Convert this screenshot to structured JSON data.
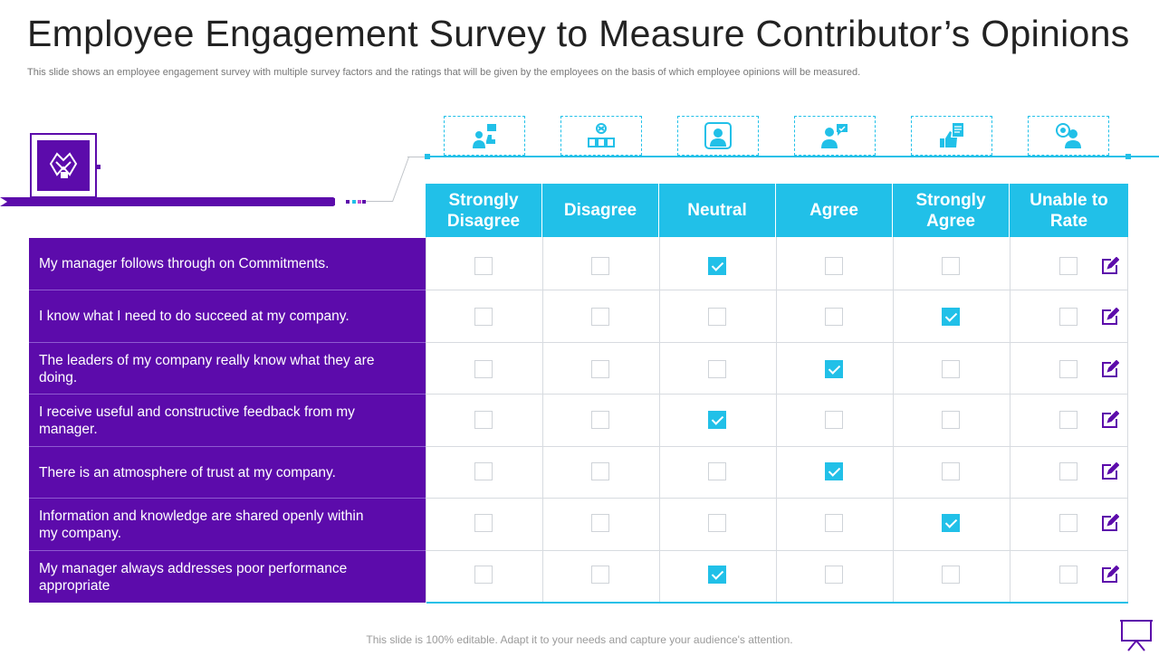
{
  "title": "Employee Engagement Survey to Measure Contributor’s Opinions",
  "subtitle": "This slide shows an employee engagement survey with multiple survey factors and the ratings that will be given by the employees on the basis of which employee opinions will be measured.",
  "header_icons": [
    "person-feedback-icon",
    "voting-icon",
    "person-portrait-icon",
    "person-chat-icon",
    "thumbs-up-document-icon",
    "person-rating-icon"
  ],
  "columns": [
    "Strongly Disagree",
    "Disagree",
    "Neutral",
    "Agree",
    "Strongly Agree",
    "Unable to Rate"
  ],
  "rows": [
    {
      "label": "My manager follows through  on Commitments.",
      "checked": "Neutral"
    },
    {
      "label": "I know what I need to do succeed at my company.",
      "checked": "Strongly Agree"
    },
    {
      "label": "The leaders of my company really know what they are doing.",
      "checked": "Agree"
    },
    {
      "label": "I receive useful and constructive feedback from my manager.",
      "checked": "Neutral"
    },
    {
      "label": "There is an atmosphere of trust at my company.",
      "checked": "Agree"
    },
    {
      "label": "Information  and knowledge are shared openly within my company.",
      "checked": "Strongly Agree"
    },
    {
      "label": "My manager always addresses poor performance appropriate",
      "checked": "Neutral"
    }
  ],
  "footer": "This slide is 100% editable. Adapt it to your needs and capture your audience's attention.",
  "colors": {
    "purple": "#5c0bab",
    "cyan": "#21c0e8",
    "grid": "#d7dbe0"
  }
}
